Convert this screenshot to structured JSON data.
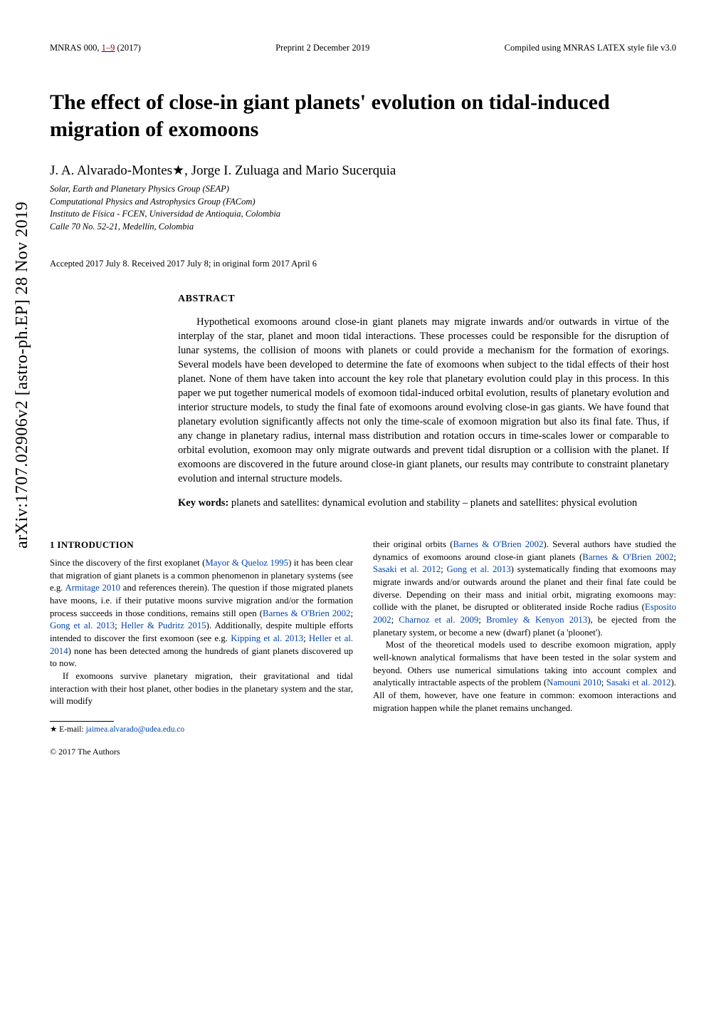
{
  "arxiv_banner": "arXiv:1707.02906v2  [astro-ph.EP]  28 Nov 2019",
  "header": {
    "journal": "MNRAS 000, ",
    "pages_link": "1–9",
    "year": " (2017)",
    "preprint": "Preprint 2 December 2019",
    "compiled": "Compiled using MNRAS LATEX style file v3.0"
  },
  "title": "The effect of close-in giant planets' evolution on tidal-induced migration of exomoons",
  "authors": "J. A. Alvarado-Montes★, Jorge I. Zuluaga and Mario Sucerquia",
  "affiliations": [
    "Solar, Earth and Planetary Physics Group (SEAP)",
    "Computational Physics and Astrophysics Group (FACom)",
    "Instituto de Física - FCEN, Universidad de Antioquia, Colombia",
    "Calle 70 No. 52-21, Medellín, Colombia"
  ],
  "accepted": "Accepted 2017 July 8. Received 2017 July 8; in original form 2017 April 6",
  "abstract_heading": "ABSTRACT",
  "abstract_text": "Hypothetical exomoons around close-in giant planets may migrate inwards and/or outwards in virtue of the interplay of the star, planet and moon tidal interactions. These processes could be responsible for the disruption of lunar systems, the collision of moons with planets or could provide a mechanism for the formation of exorings. Several models have been developed to determine the fate of exomoons when subject to the tidal effects of their host planet. None of them have taken into account the key role that planetary evolution could play in this process. In this paper we put together numerical models of exomoon tidal-induced orbital evolution, results of planetary evolution and interior structure models, to study the final fate of exomoons around evolving close-in gas giants. We have found that planetary evolution significantly affects not only the time-scale of exomoon migration but also its final fate. Thus, if any change in planetary radius, internal mass distribution and rotation occurs in time-scales lower or comparable to orbital evolution, exomoon may only migrate outwards and prevent tidal disruption or a collision with the planet. If exomoons are discovered in the future around close-in giant planets, our results may contribute to constraint planetary evolution and internal structure models.",
  "keywords_label": "Key words:",
  "keywords_text": " planets and satellites: dynamical evolution and stability – planets and satellites: physical evolution",
  "section1_heading": "1   INTRODUCTION",
  "col_left": {
    "p1a": "Since the discovery of the first exoplanet (",
    "c1": "Mayor & Queloz 1995",
    "p1b": ") it has been clear that migration of giant planets is a common phenomenon in planetary systems (see e.g. ",
    "c2": "Armitage 2010",
    "p1c": " and references therein). The question if those migrated planets have moons, i.e. if their putative moons survive migration and/or the formation process succeeds in those conditions, remains still open (",
    "c3": "Barnes & O'Brien 2002",
    "p1d": "; ",
    "c4": "Gong et al. 2013",
    "p1e": "; ",
    "c5": "Heller & Pudritz 2015",
    "p1f": "). Additionally, despite multiple efforts intended to discover the first exomoon (see e.g. ",
    "c6": "Kipping et al. 2013",
    "p1g": "; ",
    "c7": "Heller et al. 2014",
    "p1h": ") none has been detected among the hundreds of giant planets discovered up to now.",
    "p2": "If exomoons survive planetary migration, their gravitational and tidal interaction with their host planet, other bodies in the planetary system and the star, will modify"
  },
  "col_right": {
    "p1a": "their original orbits (",
    "c1": "Barnes & O'Brien 2002",
    "p1b": "). Several authors have studied the dynamics of exomoons around close-in giant planets (",
    "c2": "Barnes & O'Brien 2002",
    "p1c": "; ",
    "c3": "Sasaki et al. 2012",
    "p1d": "; ",
    "c4": "Gong et al. 2013",
    "p1e": ") systematically finding that exomoons may migrate inwards and/or outwards around the planet and their final fate could be diverse. Depending on their mass and initial orbit, migrating exomoons may: collide with the planet, be disrupted or obliterated inside Roche radius (",
    "c5": "Esposito 2002",
    "p1f": "; ",
    "c6": "Charnoz et al. 2009",
    "p1g": "; ",
    "c7": "Bromley & Kenyon 2013",
    "p1h": "), be ejected from the planetary system, or become a new (dwarf) planet (a 'ploonet').",
    "p2a": "Most of the theoretical models used to describe exomoon migration, apply well-known analytical formalisms that have been tested in the solar system and beyond. Others use numerical simulations taking into account complex and analytically intractable aspects of the problem (",
    "c8": "Namouni 2010",
    "p2b": "; ",
    "c9": "Sasaki et al. 2012",
    "p2c": "). All of them, however, have one feature in common: exomoon interactions and migration happen while the planet remains unchanged."
  },
  "footnote_star": "★ E-mail: ",
  "footnote_email": "jaimea.alvarado@udea.edu.co",
  "copyright": "© 2017 The Authors"
}
